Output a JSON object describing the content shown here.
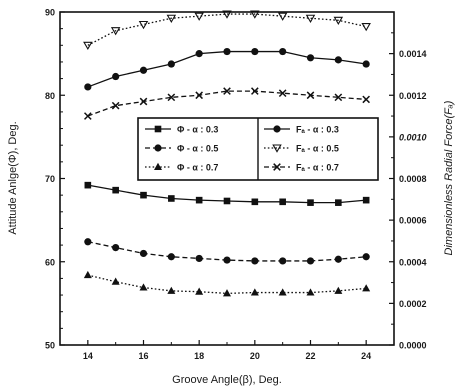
{
  "chart_data": {
    "type": "line",
    "xlabel": "Groove Angle(β), Deg.",
    "ylabel_left": "Attitude Anlge(Φ), Deg.",
    "ylabel_right": "Dimensionless Radial Force(Fₐ)",
    "xlim": [
      13,
      25
    ],
    "ylim_left": [
      50,
      90
    ],
    "ylim_right": [
      0.0,
      0.0016
    ],
    "x_ticks": [
      "14",
      "16",
      "18",
      "20",
      "22",
      "24"
    ],
    "y_ticks_left": [
      "50",
      "60",
      "70",
      "80",
      "90"
    ],
    "y_ticks_right": [
      "0.0000",
      "0.0002",
      "0.0004",
      "0.0006",
      "0.0008",
      "0.0010",
      "0.0012",
      "0.0014"
    ],
    "grid": false,
    "x": [
      14,
      15,
      16,
      17,
      18,
      19,
      20,
      21,
      22,
      23,
      24
    ],
    "series": [
      {
        "name": "Φ - α : 0.3",
        "axis": "left",
        "marker": "square",
        "style": "solid",
        "values": [
          69.2,
          68.6,
          68.0,
          67.6,
          67.4,
          67.3,
          67.2,
          67.2,
          67.1,
          67.1,
          67.4
        ]
      },
      {
        "name": "Φ - α : 0.5",
        "axis": "left",
        "marker": "circle",
        "style": "dashed",
        "values": [
          62.4,
          61.7,
          61.0,
          60.6,
          60.4,
          60.2,
          60.1,
          60.1,
          60.1,
          60.3,
          60.6
        ]
      },
      {
        "name": "Φ - α : 0.7",
        "axis": "left",
        "marker": "triangle-up",
        "style": "dotted",
        "values": [
          58.4,
          57.6,
          56.9,
          56.5,
          56.4,
          56.2,
          56.3,
          56.3,
          56.3,
          56.5,
          56.8
        ]
      },
      {
        "name": "Fₐ - α : 0.3",
        "axis": "right",
        "marker": "circle",
        "style": "solid",
        "values": [
          0.00124,
          0.00129,
          0.00132,
          0.00135,
          0.0014,
          0.00141,
          0.00141,
          0.00141,
          0.00138,
          0.00137,
          0.00135
        ]
      },
      {
        "name": "Fₐ - α : 0.5",
        "axis": "right",
        "marker": "triangle-down",
        "style": "dotted",
        "values": [
          0.00144,
          0.00151,
          0.00154,
          0.00157,
          0.00158,
          0.00159,
          0.00159,
          0.00158,
          0.00157,
          0.00156,
          0.00153
        ]
      },
      {
        "name": "Fₐ - α : 0.7",
        "axis": "right",
        "marker": "x",
        "style": "dashed",
        "values": [
          0.0011,
          0.00115,
          0.00117,
          0.00119,
          0.0012,
          0.00122,
          0.00122,
          0.00121,
          0.0012,
          0.00119,
          0.00118
        ]
      }
    ],
    "legend_left": [
      "Φ - α : 0.3",
      "Φ - α : 0.5",
      "Φ - α : 0.7"
    ],
    "legend_right": [
      "Fₐ - α : 0.3",
      "Fₐ - α : 0.5",
      "Fₐ - α : 0.7"
    ]
  }
}
